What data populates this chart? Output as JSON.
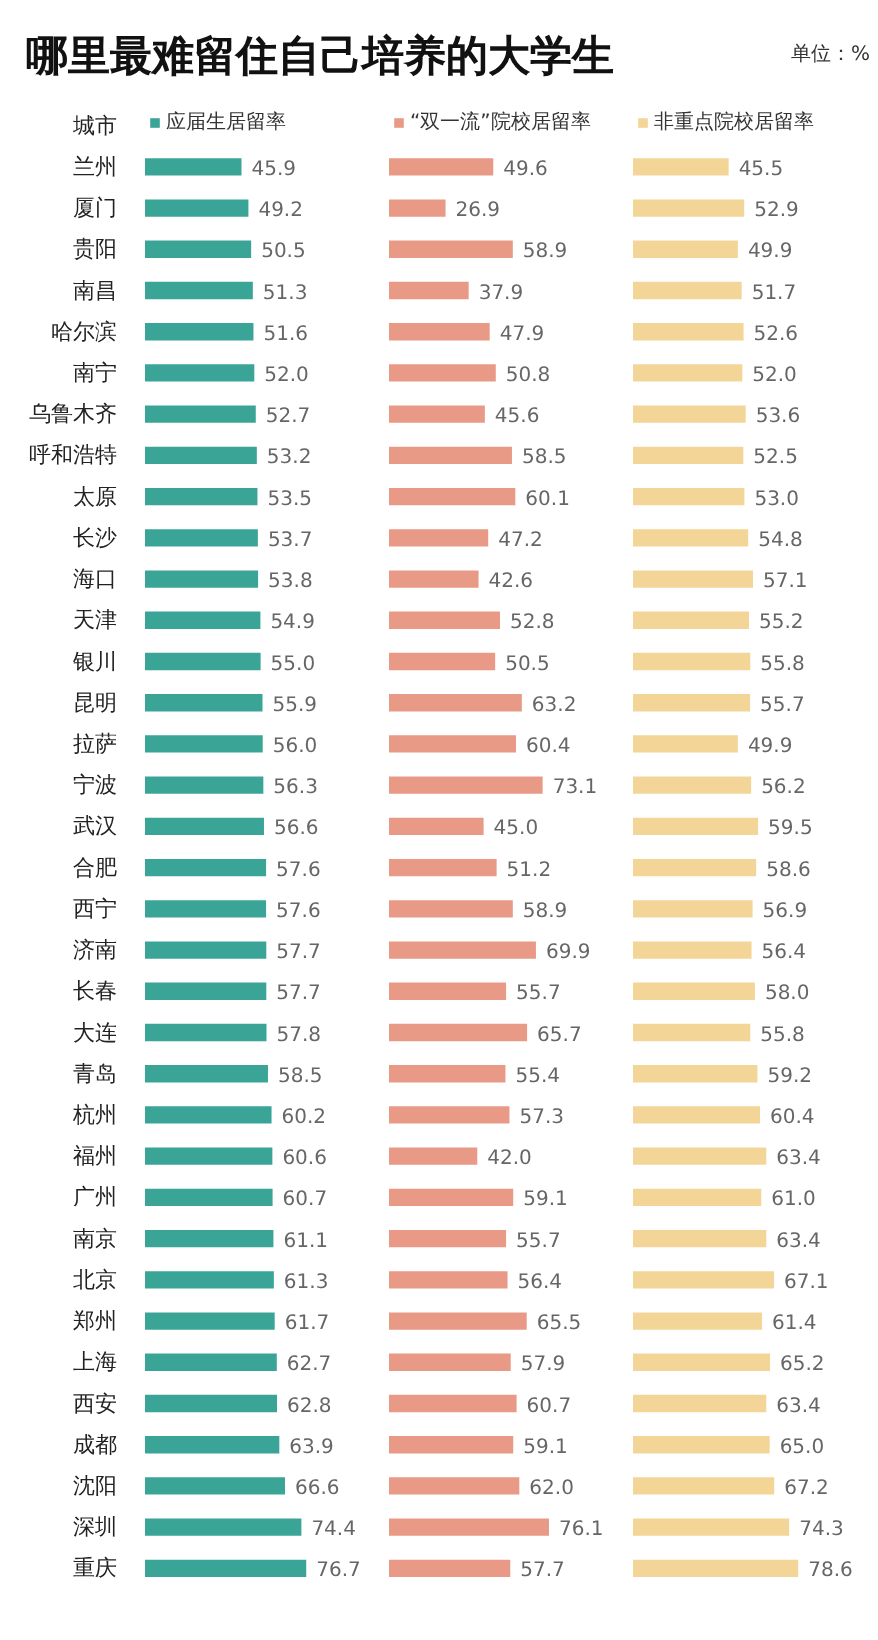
{
  "chart_data": [
    {
      "type": "bar",
      "orientation": "horizontal",
      "title": "哪里最难留住自己培养的大学生",
      "annotations": [
        "单位：%"
      ],
      "ylabel": "城市",
      "categories": [
        "兰州",
        "厦门",
        "贵阳",
        "南昌",
        "哈尔滨",
        "南宁",
        "乌鲁木齐",
        "呼和浩特",
        "太原",
        "长沙",
        "海口",
        "天津",
        "银川",
        "昆明",
        "拉萨",
        "宁波",
        "武汉",
        "合肥",
        "西宁",
        "济南",
        "长春",
        "大连",
        "青岛",
        "杭州",
        "福州",
        "广州",
        "南京",
        "北京",
        "郑州",
        "上海",
        "西安",
        "成都",
        "沈阳",
        "深圳",
        "重庆"
      ],
      "series": [
        {
          "name": "应届生居留率",
          "color": "#3aa597",
          "values": [
            45.9,
            49.2,
            50.5,
            51.3,
            51.6,
            52.0,
            52.7,
            53.2,
            53.5,
            53.7,
            53.8,
            54.9,
            55.0,
            55.9,
            56.0,
            56.3,
            56.6,
            57.6,
            57.6,
            57.7,
            57.7,
            57.8,
            58.5,
            60.2,
            60.6,
            60.7,
            61.1,
            61.3,
            61.7,
            62.7,
            62.8,
            63.9,
            66.6,
            74.4,
            76.7
          ],
          "value_labels": [
            "45.9",
            "49.2",
            "50.5",
            "51.3",
            "51.6",
            "52.0",
            "52.7",
            "53.2",
            "53.5",
            "53.7",
            "53.8",
            "54.9",
            "55.0",
            "55.9",
            "56.0",
            "56.3",
            "56.6",
            "57.6",
            "57.6",
            "57.7",
            "57.7",
            "57.8",
            "58.5",
            "60.2",
            "60.6",
            "60.7",
            "61.1",
            "61.3",
            "61.7",
            "62.7",
            "62.8",
            "63.9",
            "66.6",
            "74.4",
            "76.7"
          ]
        }
      ],
      "legend": "top",
      "tick_labels": "y"
    },
    {
      "type": "bar",
      "orientation": "horizontal",
      "categories": [
        null,
        null,
        null,
        null,
        null,
        null,
        null,
        null,
        null,
        null,
        null,
        null,
        null,
        null,
        null,
        null,
        null,
        null,
        null,
        null,
        null,
        null,
        null,
        null,
        null,
        null,
        null,
        null,
        null,
        null,
        null,
        null,
        null,
        null,
        null
      ],
      "series": [
        {
          "name": "“双一流”院校居留率",
          "color": "#e89a86",
          "values": [
            49.6,
            26.9,
            58.9,
            37.9,
            47.9,
            50.8,
            45.6,
            58.5,
            60.1,
            47.2,
            42.6,
            52.8,
            50.5,
            63.2,
            60.4,
            73.1,
            45.0,
            51.2,
            58.9,
            69.9,
            55.7,
            65.7,
            55.4,
            57.3,
            42.0,
            59.1,
            55.7,
            56.4,
            65.5,
            57.9,
            60.7,
            59.1,
            62.0,
            76.1,
            57.7
          ],
          "value_labels": [
            "49.6",
            "26.9",
            "58.9",
            "37.9",
            "47.9",
            "50.8",
            "45.6",
            "58.5",
            "60.1",
            "47.2",
            "42.6",
            "52.8",
            "50.5",
            "63.2",
            "60.4",
            "73.1",
            "45.0",
            "51.2",
            "58.9",
            "69.9",
            "55.7",
            "65.7",
            "55.4",
            "57.3",
            "42.0",
            "59.1",
            "55.7",
            "56.4",
            "65.5",
            "57.9",
            "60.7",
            "59.1",
            "62.0",
            "76.1",
            "57.7"
          ]
        }
      ],
      "legend": "top",
      "tick_labels": false
    },
    {
      "type": "bar",
      "orientation": "horizontal",
      "categories": [
        null,
        null,
        null,
        null,
        null,
        null,
        null,
        null,
        null,
        null,
        null,
        null,
        null,
        null,
        null,
        null,
        null,
        null,
        null,
        null,
        null,
        null,
        null,
        null,
        null,
        null,
        null,
        null,
        null,
        null,
        null,
        null,
        null,
        null,
        null
      ],
      "series": [
        {
          "name": "非重点院校居留率",
          "color": "#f3d597",
          "values": [
            45.5,
            52.9,
            49.9,
            51.7,
            52.6,
            52.0,
            53.6,
            52.5,
            53.0,
            54.8,
            57.1,
            55.2,
            55.8,
            55.7,
            49.9,
            56.2,
            59.5,
            58.6,
            56.9,
            56.4,
            58.0,
            55.8,
            59.2,
            60.4,
            63.4,
            61.0,
            63.4,
            67.1,
            61.4,
            65.2,
            63.4,
            65.0,
            67.2,
            74.3,
            78.6
          ],
          "value_labels": [
            "45.5",
            "52.9",
            "49.9",
            "51.7",
            "52.6",
            "52.0",
            "53.6",
            "52.5",
            "53.0",
            "54.8",
            "57.1",
            "55.2",
            "55.8",
            "55.7",
            "49.9",
            "56.2",
            "59.5",
            "58.6",
            "56.9",
            "56.4",
            "58.0",
            "55.8",
            "59.2",
            "60.4",
            "63.4",
            "61.0",
            "63.4",
            "67.1",
            "61.4",
            "65.2",
            "63.4",
            "65.0",
            "67.2",
            "74.3",
            "78.6"
          ]
        }
      ],
      "legend": "top",
      "tick_labels": false
    }
  ]
}
